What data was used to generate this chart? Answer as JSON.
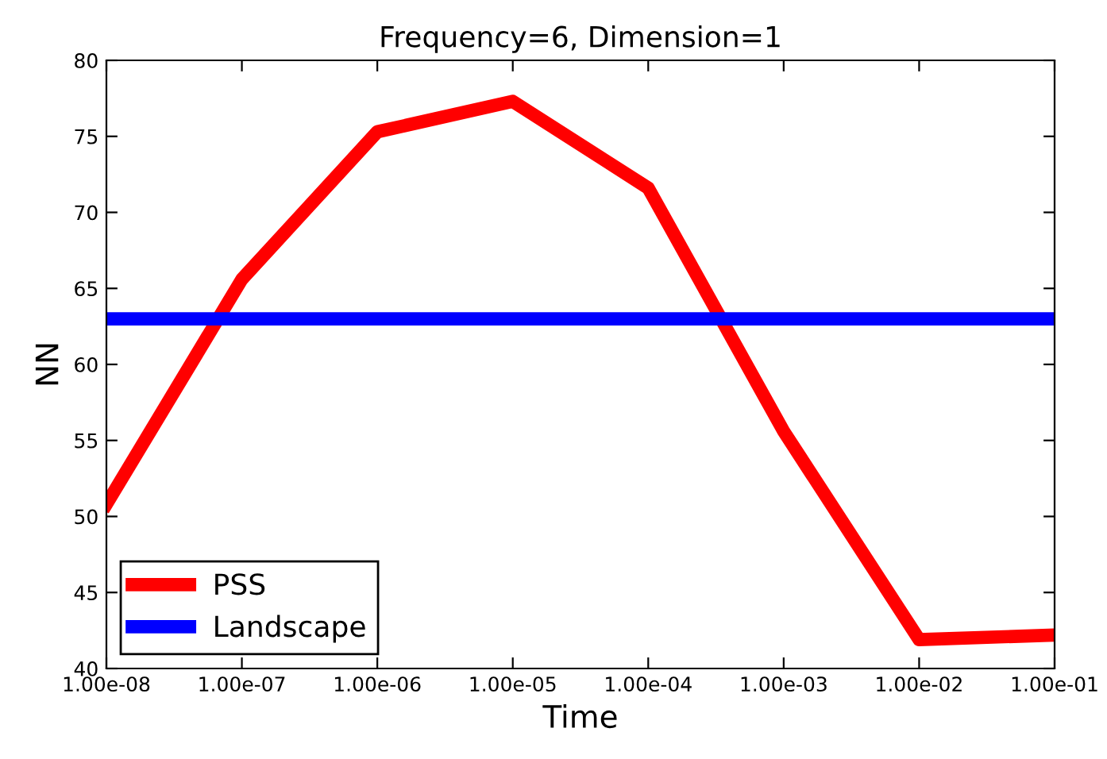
{
  "chart_data": {
    "type": "line",
    "title": "Frequency=6, Dimension=1",
    "xlabel": "Time",
    "ylabel": "NN",
    "log": "x",
    "x": [
      1e-08,
      1e-07,
      1e-06,
      1e-05,
      0.0001,
      0.001,
      0.01,
      0.1
    ],
    "series": [
      {
        "name": "PSS",
        "color": "#ff0000",
        "values": [
          50.8,
          65.6,
          75.3,
          77.3,
          71.6,
          55.6,
          41.9,
          42.2
        ]
      },
      {
        "name": "Landscape",
        "color": "#0000ff",
        "values": [
          63.0,
          63.0,
          63.0,
          63.0,
          63.0,
          63.0,
          63.0,
          63.0
        ]
      }
    ],
    "xlim": [
      1e-08,
      0.1
    ],
    "xticks": [
      {
        "value": 1e-08,
        "label": "1.00e-08"
      },
      {
        "value": 1e-07,
        "label": "1.00e-07"
      },
      {
        "value": 1e-06,
        "label": "1.00e-06"
      },
      {
        "value": 1e-05,
        "label": "1.00e-05"
      },
      {
        "value": 0.0001,
        "label": "1.00e-04"
      },
      {
        "value": 0.001,
        "label": "1.00e-03"
      },
      {
        "value": 0.01,
        "label": "1.00e-02"
      },
      {
        "value": 0.1,
        "label": "1.00e-01"
      }
    ],
    "ylim": [
      40,
      80
    ],
    "yticks": [
      40,
      45,
      50,
      55,
      60,
      65,
      70,
      75,
      80
    ],
    "grid": false,
    "legend": "bottom left",
    "marker": "none",
    "line_style": "solid"
  }
}
